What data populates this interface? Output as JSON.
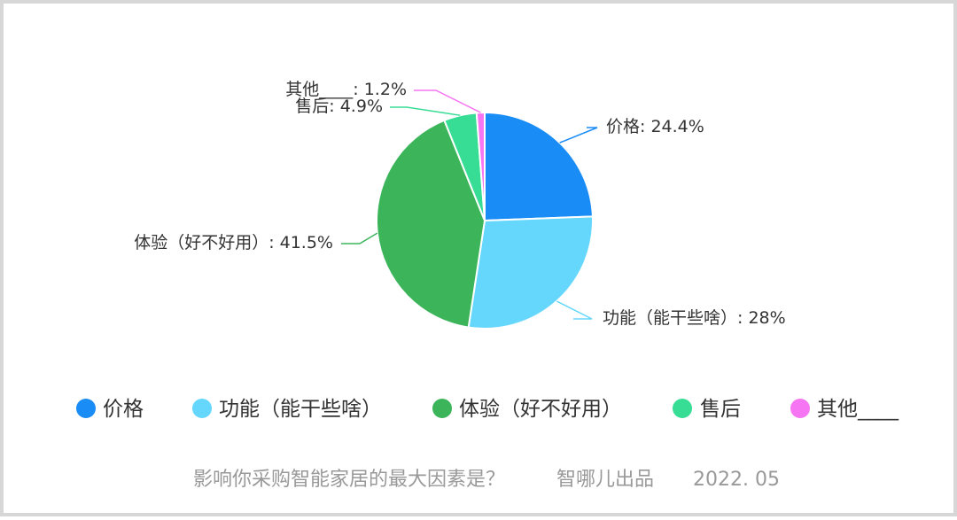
{
  "chart_data": {
    "type": "pie",
    "slices": [
      {
        "name": "价格",
        "value": 24.4,
        "label": "价格: 24.4%",
        "color": "#1a8cf5"
      },
      {
        "name": "功能（能干些啥）",
        "value": 28,
        "label": "功能（能干些啥）: 28%",
        "color": "#66d7fc"
      },
      {
        "name": "体验（好不好用）",
        "value": 41.5,
        "label": "体验（好不好用）: 41.5%",
        "color": "#3cb55a"
      },
      {
        "name": "售后",
        "value": 4.9,
        "label": "售后: 4.9%",
        "color": "#38dd95"
      },
      {
        "name": "其他____",
        "value": 1.2,
        "label": "其他____: 1.2%",
        "color": "#f575f2"
      }
    ],
    "legend_placement": "bottom"
  },
  "footer": {
    "question": "影响你采购智能家居的最大因素是？",
    "source": "智哪儿出品",
    "date": "2022. 05"
  }
}
